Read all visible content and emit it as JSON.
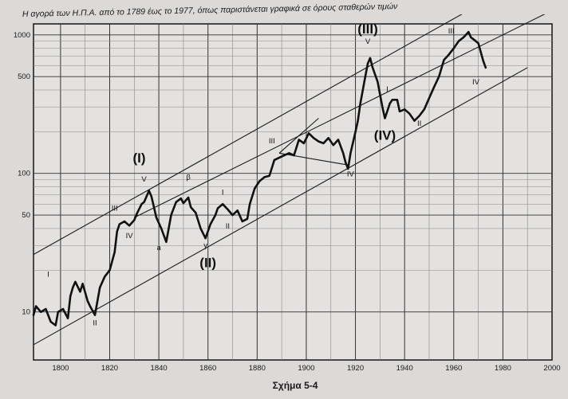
{
  "chart_data": {
    "type": "line",
    "title": "Η αγορά των Η.Π.Α. από το 1789 έως το 1977, όπως παριστάνεται γραφικά σε όρους σταθερών τιμών",
    "caption": "Σχήμα 5-4",
    "xlabel": "",
    "ylabel": "",
    "y_scale": "log",
    "xlim": [
      1789,
      2000
    ],
    "ylim": [
      4.5,
      1200
    ],
    "x_ticks": [
      1800,
      1820,
      1840,
      1860,
      1880,
      1900,
      1920,
      1940,
      1960,
      1980,
      2000
    ],
    "y_ticks": [
      10,
      50,
      100,
      500,
      1000
    ],
    "grid": true,
    "series": [
      {
        "x": [
          1789,
          1790,
          1792,
          1794,
          1796,
          1798,
          1799,
          1801,
          1803,
          1804,
          1805,
          1806,
          1808,
          1809,
          1811,
          1812,
          1814,
          1816,
          1818,
          1820,
          1822,
          1823,
          1824,
          1826,
          1828,
          1830,
          1831,
          1833,
          1834,
          1836,
          1837,
          1839,
          1841,
          1843,
          1845,
          1847,
          1849,
          1850,
          1852,
          1853,
          1855,
          1857,
          1859,
          1861,
          1863,
          1864,
          1866,
          1868,
          1870,
          1872,
          1874,
          1876,
          1877,
          1879,
          1881,
          1883,
          1885,
          1887,
          1889,
          1891,
          1893,
          1895,
          1897,
          1899,
          1901,
          1903,
          1905,
          1907,
          1909,
          1911,
          1913,
          1915,
          1916,
          1917,
          1918,
          1920,
          1921,
          1922,
          1923,
          1924,
          1925,
          1926,
          1927,
          1929,
          1931,
          1932,
          1934,
          1935,
          1937,
          1938,
          1940,
          1942,
          1944,
          1946,
          1948,
          1950,
          1952,
          1954,
          1956,
          1958,
          1960,
          1962,
          1964,
          1966,
          1967,
          1969,
          1970,
          1971,
          1972,
          1973
        ],
        "values": [
          9.5,
          11,
          10,
          10.5,
          8.5,
          8,
          10,
          10.5,
          9,
          13,
          15,
          16.5,
          14,
          16,
          12,
          11,
          9.5,
          15,
          18,
          20,
          27,
          38,
          43,
          45,
          42,
          46,
          51,
          60,
          62,
          75,
          68,
          48,
          40,
          32,
          50,
          62,
          66,
          61,
          67,
          57,
          52,
          40,
          34,
          43,
          50,
          56,
          60,
          55,
          50,
          54,
          45,
          47,
          60,
          78,
          88,
          94,
          96,
          125,
          130,
          135,
          140,
          135,
          175,
          165,
          195,
          180,
          170,
          165,
          180,
          160,
          175,
          140,
          120,
          108,
          140,
          200,
          240,
          320,
          400,
          500,
          620,
          680,
          580,
          460,
          300,
          250,
          320,
          340,
          340,
          280,
          290,
          270,
          240,
          260,
          290,
          350,
          420,
          500,
          660,
          720,
          800,
          900,
          960,
          1050,
          960,
          900,
          870,
          750,
          650,
          580
        ]
      }
    ],
    "channel_lines": [
      {
        "x": [
          1789,
          1990
        ],
        "values": [
          26,
          2600
        ]
      },
      {
        "x": [
          1789,
          1990
        ],
        "values": [
          5.8,
          580
        ]
      },
      {
        "x": [
          1830,
          2000
        ],
        "values": [
          48,
          1500
        ]
      },
      {
        "x": [
          1889,
          1917
        ],
        "values": [
          140,
          115
        ]
      },
      {
        "x": [
          1889,
          1905
        ],
        "values": [
          140,
          250
        ]
      }
    ],
    "annotations": [
      {
        "text": "I",
        "x": 1795,
        "y": 18
      },
      {
        "text": "II",
        "x": 1814,
        "y": 8
      },
      {
        "text": "III",
        "x": 1822,
        "y": 54
      },
      {
        "text": "IV",
        "x": 1828,
        "y": 34
      },
      {
        "text": "(I)",
        "x": 1832,
        "y": 120
      },
      {
        "text": "V",
        "x": 1834,
        "y": 87
      },
      {
        "text": "a",
        "x": 1840,
        "y": 28
      },
      {
        "text": "β",
        "x": 1852,
        "y": 90
      },
      {
        "text": "γ",
        "x": 1859,
        "y": 29
      },
      {
        "text": "(II)",
        "x": 1860,
        "y": 21
      },
      {
        "text": "I",
        "x": 1866,
        "y": 70
      },
      {
        "text": "II",
        "x": 1868,
        "y": 40
      },
      {
        "text": "III",
        "x": 1886,
        "y": 165
      },
      {
        "text": "IV",
        "x": 1918,
        "y": 95
      },
      {
        "text": "(III)",
        "x": 1925,
        "y": 1200
      },
      {
        "text": "V",
        "x": 1925,
        "y": 860
      },
      {
        "text": "I",
        "x": 1933,
        "y": 390
      },
      {
        "text": "(IV)",
        "x": 1932,
        "y": 175
      },
      {
        "text": "II",
        "x": 1946,
        "y": 220
      },
      {
        "text": "III",
        "x": 1959,
        "y": 1200
      },
      {
        "text": "IV",
        "x": 1969,
        "y": 440
      }
    ]
  }
}
